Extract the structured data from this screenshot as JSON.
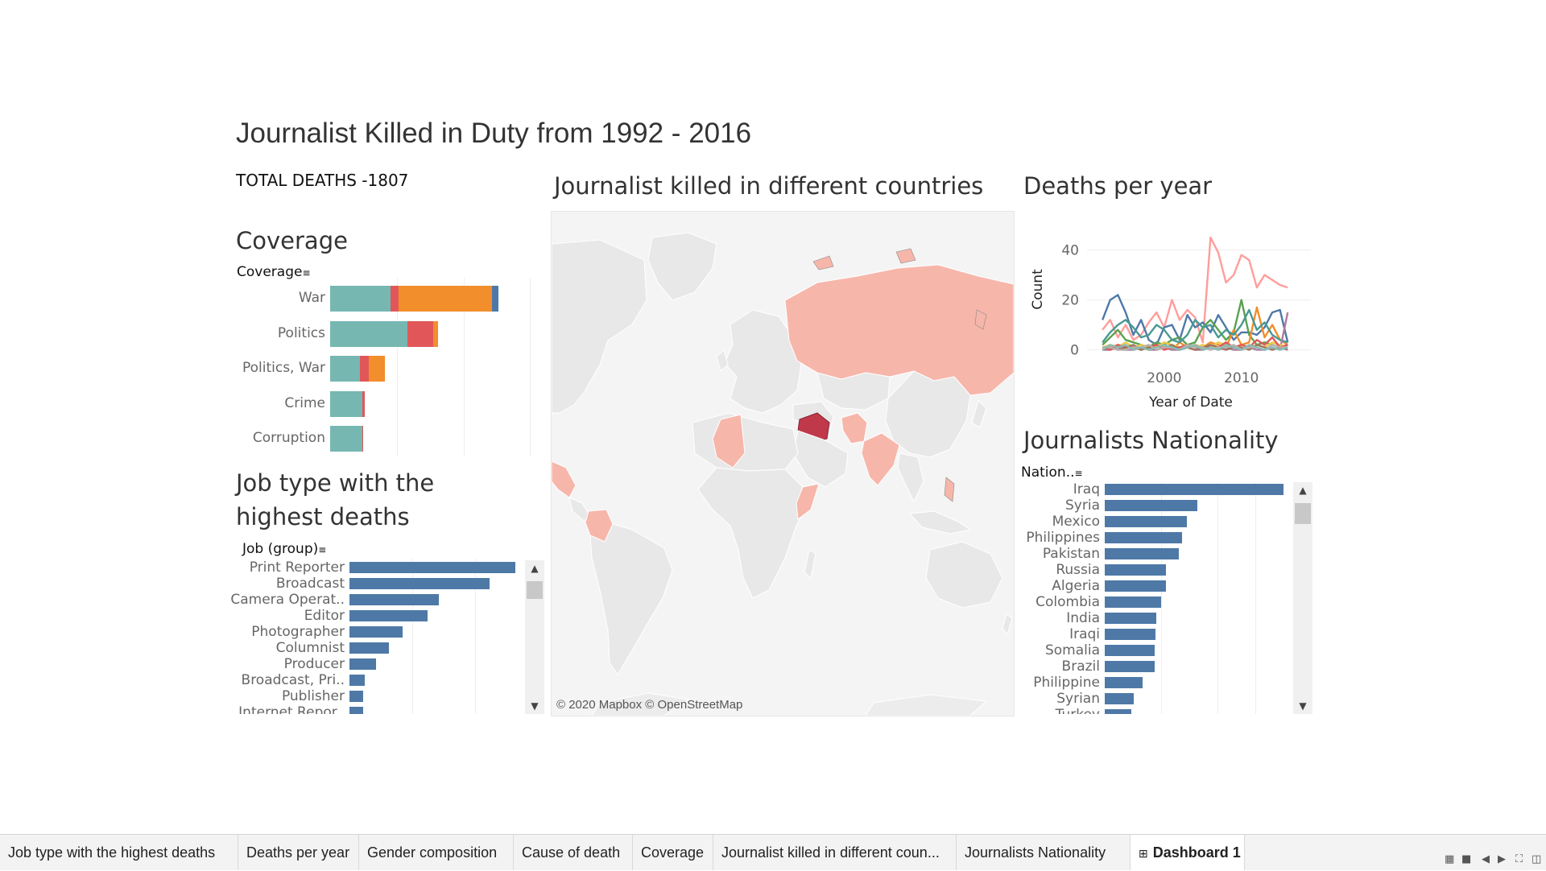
{
  "dashboard": {
    "title": "Journalist Killed in Duty from 1992 - 2016",
    "total_deaths": "TOTAL DEATHS -1807"
  },
  "coverage": {
    "title": "Coverage",
    "field_header": "Coverage",
    "chart_data": {
      "type": "bar",
      "stacked": true,
      "orientation": "horizontal",
      "categories": [
        "War",
        "Politics",
        "Politics, War",
        "Crime",
        "Corruption"
      ],
      "series": [
        {
          "color": "#76b7b2",
          "values": [
            82,
            104,
            40,
            43,
            43
          ]
        },
        {
          "color": "#e15759",
          "values": [
            10,
            35,
            12,
            4,
            1
          ]
        },
        {
          "color": "#f28e2b",
          "values": [
            126,
            7,
            22,
            0,
            0
          ]
        },
        {
          "color": "#4e79a7",
          "values": [
            9,
            0,
            0,
            0,
            0
          ]
        }
      ]
    }
  },
  "job_type": {
    "title_line1": "Job type with the",
    "title_line2": "highest deaths",
    "field_header": "Job (group)",
    "chart_data": {
      "type": "bar",
      "orientation": "horizontal",
      "color": "#4e79a7",
      "categories": [
        "Print Reporter",
        "Broadcast",
        "Camera Operat..",
        "Editor",
        "Photographer",
        "Columnist",
        "Producer",
        "Broadcast, Pri..",
        "Publisher",
        "Internet Repor.."
      ],
      "values": [
        206,
        174,
        111,
        97,
        66,
        49,
        33,
        19,
        17,
        17
      ]
    }
  },
  "map": {
    "title": "Journalist killed in different countries",
    "attribution": "© 2020 Mapbox © OpenStreetMap"
  },
  "deaths_per_year": {
    "title": "Deaths per year",
    "chart_data": {
      "type": "line",
      "xlabel": "Year of Date",
      "ylabel": "Count",
      "x_ticks": [
        2000,
        2010
      ],
      "y_ticks": [
        0,
        20,
        40
      ],
      "xlim": [
        1990,
        2019
      ],
      "ylim": [
        -4,
        46
      ],
      "x": [
        1992,
        1993,
        1994,
        1995,
        1996,
        1997,
        1998,
        1999,
        2000,
        2001,
        2002,
        2003,
        2004,
        2005,
        2006,
        2007,
        2008,
        2009,
        2010,
        2011,
        2012,
        2013,
        2014,
        2015,
        2016
      ],
      "series": [
        {
          "color": "#ff9d9a",
          "values": [
            8,
            12,
            5,
            10,
            4,
            6,
            11,
            15,
            9,
            20,
            12,
            16,
            13,
            3,
            45,
            39,
            27,
            30,
            38,
            36,
            25,
            30,
            28,
            26,
            25
          ]
        },
        {
          "color": "#4e79a7",
          "values": [
            12,
            20,
            22,
            15,
            6,
            12,
            4,
            2,
            9,
            10,
            4,
            14,
            9,
            11,
            7,
            14,
            9,
            4,
            7,
            7,
            6,
            9,
            15,
            16,
            3
          ]
        },
        {
          "color": "#59a14f",
          "values": [
            2,
            5,
            8,
            4,
            3,
            2,
            1,
            3,
            2,
            4,
            5,
            2,
            3,
            9,
            12,
            8,
            4,
            7,
            20,
            6,
            2,
            3,
            2,
            1,
            2
          ]
        },
        {
          "color": "#f28e2b",
          "values": [
            0,
            1,
            2,
            1,
            0,
            1,
            0,
            2,
            1,
            0,
            3,
            1,
            2,
            1,
            3,
            2,
            1,
            8,
            2,
            3,
            17,
            5,
            10,
            4,
            2
          ]
        },
        {
          "color": "#499894",
          "values": [
            3,
            7,
            10,
            12,
            9,
            5,
            6,
            10,
            8,
            4,
            3,
            6,
            12,
            9,
            10,
            5,
            8,
            6,
            10,
            16,
            8,
            11,
            6,
            4,
            3
          ]
        },
        {
          "color": "#b07aa1",
          "values": [
            0,
            0,
            1,
            0,
            0,
            1,
            0,
            0,
            1,
            0,
            0,
            1,
            0,
            0,
            1,
            0,
            1,
            0,
            0,
            1,
            0,
            0,
            1,
            0,
            15
          ]
        },
        {
          "color": "#edc948",
          "values": [
            1,
            2,
            1,
            3,
            1,
            2,
            1,
            1,
            3,
            2,
            1,
            2,
            1,
            2,
            1,
            3,
            2,
            1,
            2,
            1,
            2,
            1,
            3,
            2,
            1
          ]
        },
        {
          "color": "#e15759",
          "values": [
            1,
            0,
            2,
            1,
            1,
            0,
            1,
            2,
            0,
            1,
            1,
            2,
            1,
            0,
            2,
            1,
            3,
            1,
            2,
            1,
            4,
            2,
            5,
            1,
            2
          ]
        },
        {
          "color": "#9c755f",
          "values": [
            0,
            1,
            0,
            1,
            2,
            0,
            1,
            0,
            1,
            2,
            0,
            1,
            0,
            1,
            2,
            1,
            0,
            1,
            1,
            0,
            2,
            1,
            0,
            1,
            0
          ]
        },
        {
          "color": "#bab0ac",
          "values": [
            1,
            1,
            0,
            0,
            1,
            1,
            2,
            0,
            1,
            1,
            0,
            2,
            1,
            1,
            0,
            1,
            1,
            2,
            0,
            1,
            1,
            0,
            2,
            1,
            1
          ]
        },
        {
          "color": "#86bcb6",
          "values": [
            0,
            2,
            1,
            2,
            0,
            1,
            0,
            1,
            2,
            1,
            0,
            1,
            2,
            0,
            1,
            0,
            2,
            1,
            0,
            2,
            1,
            0,
            1,
            0,
            1
          ]
        }
      ]
    }
  },
  "nationality": {
    "title": "Journalists Nationality",
    "field_header": "Nation..",
    "chart_data": {
      "type": "bar",
      "orientation": "horizontal",
      "color": "#4e79a7",
      "categories": [
        "Iraq",
        "Syria",
        "Mexico",
        "Philippines",
        "Pakistan",
        "Russia",
        "Algeria",
        "Colombia",
        "India",
        "Iraqi",
        "Somalia",
        "Brazil",
        "Philippine",
        "Syrian",
        "Turkey"
      ],
      "values": [
        190,
        98,
        87,
        82,
        79,
        65,
        65,
        60,
        55,
        54,
        53,
        53,
        40,
        31,
        28
      ]
    }
  },
  "tabs": [
    {
      "label": "Job type with the highest deaths"
    },
    {
      "label": "Deaths per year"
    },
    {
      "label": "Gender composition"
    },
    {
      "label": "Cause of death"
    },
    {
      "label": "Coverage"
    },
    {
      "label": "Journalist killed in different coun..."
    },
    {
      "label": "Journalists Nationality"
    },
    {
      "label": "Dashboard 1",
      "icon": "dashboard-grid-icon",
      "active": true
    }
  ]
}
